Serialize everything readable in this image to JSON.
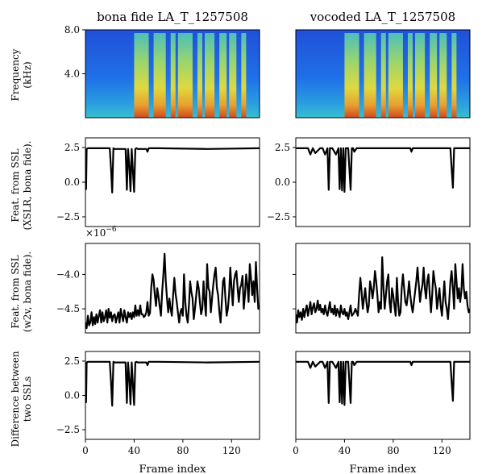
{
  "figure": {
    "titles": [
      "bona fide LA_T_1257508",
      "vocoded LA_T_1257508"
    ],
    "ylabels": [
      [
        "Frequency",
        "(kHz)"
      ],
      [
        "Feat. from SSL",
        "(XSLR, bona fide)."
      ],
      [
        "Feat. from SSL",
        "(w2v, bona fide)."
      ],
      [
        "Difference between",
        "two SSLs"
      ]
    ],
    "xlabel": "Frame index",
    "scale_note": "×10",
    "scale_exp": "−6"
  },
  "chart_data": [
    {
      "type": "heatmap",
      "title": "bona fide LA_T_1257508",
      "xlabel": "",
      "ylabel": "Frequency (kHz)",
      "xlim": [
        0,
        143
      ],
      "ylim": [
        0,
        8
      ],
      "yticks": [
        4.0,
        8.0
      ],
      "ytick_labels": [
        "4.0",
        "8.0"
      ],
      "speech_segments": [
        [
          40,
          52
        ],
        [
          56,
          66
        ],
        [
          70,
          74
        ],
        [
          76,
          88
        ],
        [
          92,
          96
        ],
        [
          98,
          106
        ],
        [
          110,
          116
        ],
        [
          118,
          124
        ],
        [
          128,
          132
        ]
      ]
    },
    {
      "type": "heatmap",
      "title": "vocoded LA_T_1257508",
      "xlabel": "",
      "ylabel": "",
      "xlim": [
        0,
        143
      ],
      "ylim": [
        0,
        8
      ],
      "speech_segments": [
        [
          40,
          52
        ],
        [
          56,
          66
        ],
        [
          70,
          74
        ],
        [
          76,
          88
        ],
        [
          92,
          96
        ],
        [
          98,
          106
        ],
        [
          110,
          116
        ],
        [
          118,
          124
        ],
        [
          128,
          132
        ]
      ]
    },
    {
      "type": "line",
      "ylabel": "Feat. from SSL (XSLR, bona fide).",
      "xlim": [
        0,
        143
      ],
      "ylim": [
        -3.2,
        3.2
      ],
      "yticks": [
        -2.5,
        0.0,
        2.5
      ],
      "ytick_labels": [
        "−2.5",
        "0.0",
        "2.5"
      ],
      "x": [
        0,
        0.5,
        1,
        2,
        20,
        21,
        22,
        23,
        24,
        33,
        34,
        35,
        36,
        37,
        38,
        39,
        40,
        41,
        42,
        43,
        50,
        51,
        52,
        60,
        100,
        143
      ],
      "y": [
        2.4,
        -0.5,
        2.4,
        2.45,
        2.45,
        1.0,
        -0.75,
        2.45,
        2.4,
        2.4,
        -0.55,
        2.4,
        1.2,
        -0.65,
        2.4,
        0.8,
        -0.7,
        2.4,
        2.45,
        2.4,
        2.4,
        2.2,
        2.45,
        2.45,
        2.4,
        2.45
      ]
    },
    {
      "type": "line",
      "ylabel": "",
      "xlim": [
        0,
        143
      ],
      "ylim": [
        -3.2,
        3.2
      ],
      "yticks": [
        -2.5,
        0.0,
        2.5
      ],
      "ytick_labels": [
        "−2.5",
        "0.0",
        "2.5"
      ],
      "x": [
        0,
        10,
        12,
        14,
        16,
        20,
        22,
        24,
        26,
        27,
        28,
        30,
        33,
        35,
        36,
        37,
        38,
        39,
        40,
        41,
        42,
        43,
        45,
        46,
        47,
        48,
        50,
        60,
        94,
        95,
        96,
        100,
        127,
        128,
        129,
        130,
        131,
        143
      ],
      "y": [
        2.45,
        2.45,
        2.0,
        2.45,
        2.1,
        2.45,
        2.45,
        2.0,
        2.45,
        -0.55,
        2.45,
        2.45,
        2.0,
        2.45,
        -0.5,
        2.45,
        -0.6,
        2.45,
        -0.7,
        2.45,
        2.45,
        2.45,
        -0.55,
        2.45,
        2.45,
        2.2,
        2.45,
        2.45,
        2.45,
        2.2,
        2.45,
        2.45,
        2.45,
        1.0,
        -0.4,
        2.45,
        2.45,
        2.45
      ]
    },
    {
      "type": "line",
      "ylabel": "Feat. from SSL (w2v, bona fide).",
      "y_scale_note": "×10^−6",
      "xlim": [
        0,
        143
      ],
      "ylim": [
        -4.85,
        -3.55
      ],
      "yticks": [
        -4.5,
        -4.0
      ],
      "ytick_labels": [
        "−4.5",
        "−4.0"
      ],
      "x": [
        0,
        1,
        2,
        3,
        4,
        5,
        6,
        7,
        8,
        9,
        10,
        11,
        12,
        13,
        14,
        15,
        16,
        17,
        18,
        19,
        20,
        21,
        22,
        23,
        24,
        25,
        26,
        27,
        28,
        29,
        30,
        31,
        32,
        33,
        34,
        35,
        36,
        37,
        38,
        39,
        40,
        41,
        42,
        43,
        44,
        45,
        46,
        47,
        48,
        49,
        50,
        51,
        52,
        53,
        54,
        55,
        56,
        57,
        58,
        59,
        60,
        61,
        62,
        63,
        64,
        65,
        66,
        67,
        68,
        69,
        70,
        71,
        72,
        73,
        74,
        75,
        76,
        77,
        78,
        79,
        80,
        81,
        82,
        83,
        84,
        85,
        86,
        87,
        88,
        89,
        90,
        91,
        92,
        93,
        94,
        95,
        96,
        97,
        98,
        99,
        100,
        101,
        102,
        103,
        104,
        105,
        106,
        107,
        108,
        109,
        110,
        111,
        112,
        113,
        114,
        115,
        116,
        117,
        118,
        119,
        120,
        121,
        122,
        123,
        124,
        125,
        126,
        127,
        128,
        129,
        130,
        131,
        132,
        133,
        134,
        135,
        136,
        137,
        138,
        139,
        140,
        141,
        142,
        143
      ],
      "y": [
        -4.7,
        -4.78,
        -4.6,
        -4.74,
        -4.7,
        -4.55,
        -4.74,
        -4.62,
        -4.72,
        -4.58,
        -4.7,
        -4.6,
        -4.52,
        -4.7,
        -4.55,
        -4.68,
        -4.62,
        -4.52,
        -4.7,
        -4.5,
        -4.63,
        -4.55,
        -4.68,
        -4.6,
        -4.58,
        -4.7,
        -4.62,
        -4.55,
        -4.7,
        -4.5,
        -4.6,
        -4.68,
        -4.52,
        -4.62,
        -4.7,
        -4.55,
        -4.62,
        -4.56,
        -4.65,
        -4.55,
        -4.62,
        -4.45,
        -4.6,
        -4.52,
        -4.6,
        -4.45,
        -4.58,
        -4.58,
        -4.62,
        -4.6,
        -4.55,
        -4.4,
        -4.6,
        -4.56,
        -4.2,
        -4.0,
        -4.08,
        -4.3,
        -4.46,
        -4.2,
        -4.32,
        -4.46,
        -4.6,
        -4.25,
        -4.0,
        -3.7,
        -4.1,
        -4.35,
        -4.55,
        -4.35,
        -4.5,
        -4.6,
        -4.3,
        -4.05,
        -4.28,
        -4.4,
        -4.56,
        -4.7,
        -4.55,
        -4.5,
        -4.6,
        -4.0,
        -4.4,
        -4.6,
        -4.7,
        -4.45,
        -4.1,
        -4.25,
        -4.35,
        -4.65,
        -4.5,
        -4.3,
        -4.1,
        -4.2,
        -4.4,
        -4.58,
        -4.5,
        -4.1,
        -4.4,
        -4.6,
        -3.85,
        -4.2,
        -4.25,
        -4.55,
        -4.35,
        -4.15,
        -4.0,
        -3.9,
        -4.2,
        -4.3,
        -4.55,
        -4.7,
        -4.4,
        -4.1,
        -4.05,
        -4.35,
        -4.6,
        -4.5,
        -4.3,
        -3.9,
        -4.2,
        -4.45,
        -4.1,
        -4.0,
        -3.95,
        -4.2,
        -4.4,
        -4.2,
        -4.15,
        -4.02,
        -4.5,
        -4.3,
        -4.0,
        -4.15,
        -4.4,
        -3.85,
        -4.05,
        -4.3,
        -4.1,
        -4.4,
        -3.82,
        -4.2,
        -4.5,
        -4.45
      ]
    },
    {
      "type": "line",
      "ylabel": "",
      "xlim": [
        0,
        143
      ],
      "ylim": [
        -4.85,
        -3.55
      ],
      "yticks": [
        -4.5,
        -4.0
      ],
      "x": [
        0,
        1,
        2,
        3,
        4,
        5,
        6,
        7,
        8,
        9,
        10,
        11,
        12,
        13,
        14,
        15,
        16,
        17,
        18,
        19,
        20,
        21,
        22,
        23,
        24,
        25,
        26,
        27,
        28,
        29,
        30,
        31,
        32,
        33,
        34,
        35,
        36,
        37,
        38,
        39,
        40,
        41,
        42,
        43,
        44,
        45,
        46,
        47,
        48,
        49,
        50,
        51,
        52,
        53,
        54,
        55,
        56,
        57,
        58,
        59,
        60,
        61,
        62,
        63,
        64,
        65,
        66,
        67,
        68,
        69,
        70,
        71,
        72,
        73,
        74,
        75,
        76,
        77,
        78,
        79,
        80,
        81,
        82,
        83,
        84,
        85,
        86,
        87,
        88,
        89,
        90,
        91,
        92,
        93,
        94,
        95,
        96,
        97,
        98,
        99,
        100,
        101,
        102,
        103,
        104,
        105,
        106,
        107,
        108,
        109,
        110,
        111,
        112,
        113,
        114,
        115,
        116,
        117,
        118,
        119,
        120,
        121,
        122,
        123,
        124,
        125,
        126,
        127,
        128,
        129,
        130,
        131,
        132,
        133,
        134,
        135,
        136,
        137,
        138,
        139,
        140,
        141,
        142,
        143
      ],
      "y": [
        -4.58,
        -4.7,
        -4.52,
        -4.62,
        -4.55,
        -4.66,
        -4.5,
        -4.62,
        -4.52,
        -4.45,
        -4.6,
        -4.5,
        -4.4,
        -4.58,
        -4.48,
        -4.42,
        -4.55,
        -4.5,
        -4.38,
        -4.52,
        -4.44,
        -4.55,
        -4.5,
        -4.58,
        -4.45,
        -4.55,
        -4.6,
        -4.5,
        -4.4,
        -4.55,
        -4.5,
        -4.58,
        -4.45,
        -4.6,
        -4.5,
        -4.55,
        -4.62,
        -4.45,
        -4.55,
        -4.58,
        -4.5,
        -4.6,
        -4.55,
        -4.65,
        -4.55,
        -4.45,
        -4.6,
        -4.58,
        -4.55,
        -4.5,
        -4.55,
        -4.6,
        -4.3,
        -4.05,
        -4.25,
        -4.5,
        -4.35,
        -4.2,
        -4.4,
        -4.55,
        -4.45,
        -4.1,
        -4.2,
        -4.35,
        -4.2,
        -3.95,
        -4.1,
        -4.3,
        -4.55,
        -4.4,
        -4.5,
        -3.75,
        -4.2,
        -4.5,
        -4.3,
        -4.1,
        -4.0,
        -4.4,
        -4.55,
        -4.2,
        -4.3,
        -4.45,
        -4.6,
        -4.05,
        -4.4,
        -4.6,
        -4.55,
        -4.2,
        -4.0,
        -4.2,
        -4.4,
        -4.45,
        -4.3,
        -4.1,
        -4.3,
        -4.45,
        -4.55,
        -4.4,
        -4.25,
        -4.1,
        -3.9,
        -4.15,
        -4.4,
        -4.25,
        -4.15,
        -3.9,
        -4.2,
        -4.35,
        -4.1,
        -4.0,
        -4.3,
        -4.55,
        -4.3,
        -3.95,
        -4.1,
        -4.2,
        -4.5,
        -4.35,
        -4.2,
        -4.45,
        -4.6,
        -4.35,
        -4.1,
        -4.4,
        -4.5,
        -4.65,
        -4.4,
        -4.1,
        -3.95,
        -4.2,
        -4.5,
        -3.85,
        -4.1,
        -4.35,
        -4.2,
        -4.4,
        -4.25,
        -3.85,
        -4.2,
        -4.35,
        -4.25,
        -4.45,
        -4.55,
        -4.5
      ]
    },
    {
      "type": "line",
      "ylabel": "Difference between two SSLs",
      "xlabel": "Frame index",
      "xlim": [
        0,
        143
      ],
      "ylim": [
        -3.2,
        3.2
      ],
      "xticks": [
        0,
        40,
        80,
        120
      ],
      "xtick_labels": [
        "0",
        "40",
        "80",
        "120"
      ],
      "yticks": [
        -2.5,
        0.0,
        2.5
      ],
      "ytick_labels": [
        "−2.5",
        "0.0",
        "2.5"
      ],
      "x": [
        0,
        0.5,
        1,
        2,
        20,
        21,
        22,
        23,
        24,
        33,
        34,
        35,
        36,
        37,
        38,
        39,
        40,
        41,
        42,
        43,
        50,
        51,
        52,
        60,
        100,
        143
      ],
      "y": [
        2.4,
        -0.5,
        2.4,
        2.45,
        2.45,
        1.0,
        -0.75,
        2.45,
        2.4,
        2.4,
        -0.55,
        2.4,
        1.2,
        -0.65,
        2.4,
        0.8,
        -0.7,
        2.4,
        2.45,
        2.4,
        2.4,
        2.2,
        2.45,
        2.45,
        2.4,
        2.45
      ]
    },
    {
      "type": "line",
      "ylabel": "",
      "xlabel": "Frame index",
      "xlim": [
        0,
        143
      ],
      "ylim": [
        -3.2,
        3.2
      ],
      "xticks": [
        0,
        40,
        80,
        120
      ],
      "xtick_labels": [
        "0",
        "40",
        "80",
        "120"
      ],
      "x": [
        0,
        10,
        12,
        14,
        16,
        20,
        22,
        24,
        26,
        27,
        28,
        30,
        33,
        35,
        36,
        37,
        38,
        39,
        40,
        41,
        42,
        43,
        45,
        46,
        47,
        48,
        50,
        60,
        94,
        95,
        96,
        100,
        127,
        128,
        129,
        130,
        131,
        143
      ],
      "y": [
        2.45,
        2.45,
        2.0,
        2.45,
        2.1,
        2.45,
        2.45,
        2.0,
        2.45,
        -0.55,
        2.45,
        2.45,
        2.0,
        2.45,
        -0.5,
        2.45,
        -0.6,
        2.45,
        -0.7,
        2.45,
        2.45,
        2.45,
        -0.55,
        2.45,
        2.45,
        2.2,
        2.45,
        2.45,
        2.45,
        2.2,
        2.45,
        2.45,
        2.45,
        1.0,
        -0.4,
        2.45,
        2.45,
        2.45
      ]
    }
  ]
}
